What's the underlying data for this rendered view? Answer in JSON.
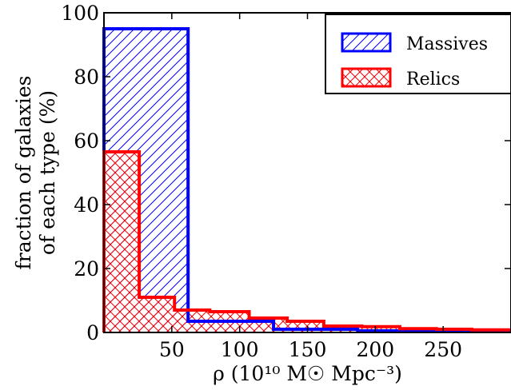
{
  "chart_data": {
    "type": "histogram",
    "xlabel": "ρ (10¹⁰ M☉ Mpc⁻³)",
    "ylabel_line1": "fraction of galaxies",
    "ylabel_line2": "of each type (%)",
    "xlim": [
      0,
      300
    ],
    "ylim": [
      0,
      100
    ],
    "x_ticks": [
      50,
      100,
      150,
      200,
      250
    ],
    "y_ticks": [
      0,
      20,
      40,
      60,
      80,
      100
    ],
    "legend_position": "top-right",
    "grid": false,
    "series": [
      {
        "name": "Massives",
        "color": "#0000ff",
        "hatch": "diagonal",
        "bin_edges": [
          0,
          62,
          125,
          187,
          250,
          300
        ],
        "values": [
          95,
          3.5,
          1.0,
          0.5,
          0.3
        ]
      },
      {
        "name": "Relics",
        "color": "#ff0000",
        "hatch": "crosshatch",
        "bin_edges": [
          0,
          26,
          52,
          78,
          107,
          135,
          162,
          190,
          218,
          245,
          271,
          300
        ],
        "values": [
          56.5,
          11.0,
          7.0,
          6.5,
          4.5,
          3.5,
          2.0,
          1.8,
          1.2,
          1.0,
          0.8
        ]
      }
    ]
  }
}
